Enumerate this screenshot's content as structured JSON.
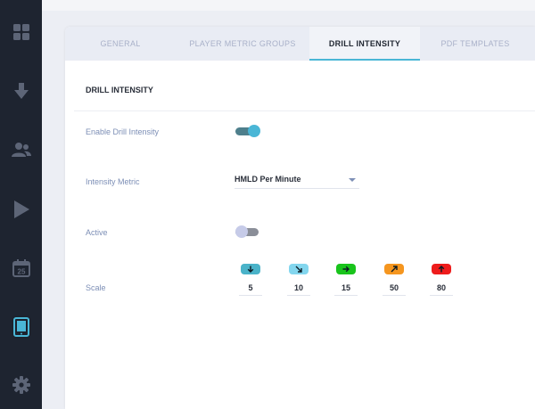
{
  "sidebar": {
    "items": [
      {
        "icon": "grid-icon"
      },
      {
        "icon": "download-arrow-icon"
      },
      {
        "icon": "users-icon"
      },
      {
        "icon": "play-icon"
      },
      {
        "icon": "calendar-icon",
        "text": "25"
      },
      {
        "icon": "tablet-icon",
        "active": true
      },
      {
        "icon": "gear-icon"
      }
    ],
    "active_color": "#4ab6d6"
  },
  "tabs": [
    {
      "label": "GENERAL"
    },
    {
      "label": "PLAYER METRIC GROUPS"
    },
    {
      "label": "DRILL INTENSITY",
      "active": true
    },
    {
      "label": "PDF TEMPLATES"
    }
  ],
  "section": {
    "title": "DRILL INTENSITY"
  },
  "fields": {
    "enable": {
      "label": "Enable Drill Intensity",
      "on": true
    },
    "metric": {
      "label": "Intensity Metric",
      "value": "HMLD Per Minute"
    },
    "active": {
      "label": "Active",
      "on": false
    },
    "scale": {
      "label": "Scale",
      "items": [
        {
          "icon": "arrow-down-icon",
          "color": "#4ab3c9",
          "value": "5"
        },
        {
          "icon": "arrow-down-right-icon",
          "color": "#83d6ee",
          "value": "10"
        },
        {
          "icon": "arrow-right-icon",
          "color": "#19c41c",
          "value": "15"
        },
        {
          "icon": "arrow-up-right-icon",
          "color": "#f5961f",
          "value": "50"
        },
        {
          "icon": "arrow-up-icon",
          "color": "#ee1c1c",
          "value": "80"
        }
      ]
    }
  }
}
